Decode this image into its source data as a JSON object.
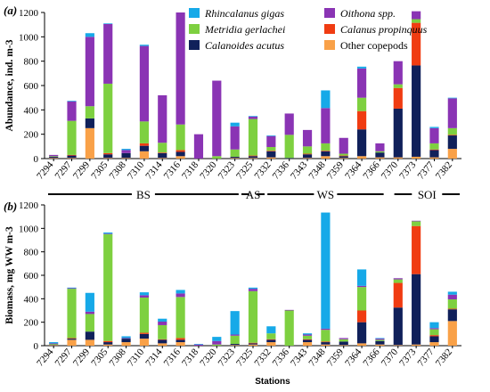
{
  "stations": [
    "7294",
    "7297",
    "7299",
    "7305",
    "7308",
    "7310",
    "7314",
    "7316",
    "7318",
    "7320",
    "7323",
    "7325",
    "7332",
    "7336",
    "7343",
    "7348",
    "7359",
    "7364",
    "7366",
    "7370",
    "7373",
    "7377",
    "7382"
  ],
  "x_title": "Stations",
  "regions": [
    {
      "label": "BS",
      "from": "7294",
      "to": "7323"
    },
    {
      "label": "AS",
      "from": "7325",
      "to": "7325"
    },
    {
      "label": "WS",
      "from": "7332",
      "to": "7366"
    },
    {
      "label": "SOI",
      "from": "7370",
      "to": "7382"
    }
  ],
  "colors": {
    "Rhincalanus gigas": "#16a9e8",
    "Metridia gerlachei": "#7ed040",
    "Calanoides acutus": "#10205a",
    "Oithona spp.": "#8a34b4",
    "Calanus propinquus": "#f03c12",
    "Other copepods": "#f9a148"
  },
  "chart_data": [
    {
      "type": "bar",
      "stacked": true,
      "panel": "(a)",
      "ylabel": "Abundance, ind. m-3",
      "ylim": [
        0,
        1200
      ],
      "yticks": [
        0,
        200,
        400,
        600,
        800,
        1000,
        1200
      ],
      "legend": [
        "Rhincalanus gigas",
        "Oithona spp.",
        "Metridia gerlachei",
        "Calanus propinquus",
        "Calanoides acutus",
        "Other copepods"
      ],
      "legend_position": "top-left",
      "categories": [
        "7294",
        "7297",
        "7299",
        "7305",
        "7308",
        "7310",
        "7314",
        "7316",
        "7318",
        "7320",
        "7323",
        "7325",
        "7332",
        "7336",
        "7343",
        "7348",
        "7359",
        "7364",
        "7366",
        "7370",
        "7373",
        "7377",
        "7382"
      ],
      "series": [
        {
          "name": "Other copepods",
          "values": [
            5,
            5,
            250,
            5,
            5,
            60,
            5,
            20,
            0,
            0,
            5,
            5,
            10,
            0,
            5,
            20,
            5,
            20,
            10,
            10,
            15,
            10,
            80
          ]
        },
        {
          "name": "Calanoides acutus",
          "values": [
            10,
            20,
            80,
            30,
            40,
            45,
            40,
            35,
            0,
            0,
            10,
            15,
            50,
            5,
            30,
            40,
            15,
            220,
            40,
            400,
            750,
            60,
            110
          ]
        },
        {
          "name": "Calanus propinquus",
          "values": [
            0,
            5,
            0,
            10,
            0,
            20,
            5,
            15,
            0,
            0,
            0,
            5,
            5,
            0,
            5,
            5,
            5,
            150,
            0,
            170,
            350,
            5,
            5
          ]
        },
        {
          "name": "Metridia gerlachei",
          "values": [
            5,
            280,
            100,
            570,
            0,
            180,
            80,
            210,
            0,
            20,
            60,
            300,
            30,
            190,
            60,
            60,
            15,
            110,
            10,
            30,
            30,
            50,
            55
          ]
        },
        {
          "name": "Oithona spp.",
          "values": [
            10,
            160,
            570,
            490,
            25,
            620,
            390,
            920,
            200,
            620,
            190,
            20,
            90,
            175,
            135,
            290,
            130,
            240,
            65,
            190,
            65,
            125,
            245
          ]
        },
        {
          "name": "Rhincalanus gigas",
          "values": [
            0,
            5,
            30,
            5,
            10,
            10,
            0,
            0,
            0,
            0,
            30,
            5,
            5,
            0,
            0,
            145,
            0,
            15,
            0,
            0,
            0,
            10,
            5
          ]
        }
      ]
    },
    {
      "type": "bar",
      "stacked": true,
      "panel": "(b)",
      "ylabel": "Biomass, mg WW m-3",
      "ylim": [
        0,
        1200
      ],
      "yticks": [
        0,
        200,
        400,
        600,
        800,
        1000,
        1200
      ],
      "categories": [
        "7294",
        "7297",
        "7299",
        "7305",
        "7308",
        "7310",
        "7314",
        "7316",
        "7318",
        "7320",
        "7323",
        "7325",
        "7332",
        "7336",
        "7343",
        "7348",
        "7359",
        "7364",
        "7366",
        "7370",
        "7373",
        "7377",
        "7382"
      ],
      "series": [
        {
          "name": "Other copepods",
          "values": [
            5,
            50,
            50,
            10,
            30,
            60,
            20,
            30,
            0,
            0,
            5,
            10,
            30,
            0,
            30,
            10,
            5,
            20,
            10,
            5,
            10,
            30,
            210
          ]
        },
        {
          "name": "Calanoides acutus",
          "values": [
            5,
            10,
            70,
            20,
            30,
            40,
            30,
            20,
            0,
            0,
            10,
            10,
            20,
            0,
            20,
            20,
            30,
            180,
            30,
            320,
            600,
            50,
            100
          ]
        },
        {
          "name": "Calanus propinquus",
          "values": [
            0,
            5,
            0,
            10,
            0,
            10,
            5,
            15,
            0,
            0,
            0,
            5,
            5,
            0,
            5,
            5,
            0,
            100,
            0,
            210,
            410,
            10,
            5
          ]
        },
        {
          "name": "Metridia gerlachei",
          "values": [
            5,
            420,
            150,
            910,
            0,
            300,
            120,
            350,
            0,
            10,
            70,
            440,
            50,
            300,
            30,
            100,
            20,
            200,
            10,
            30,
            40,
            50,
            80
          ]
        },
        {
          "name": "Oithona spp.",
          "values": [
            5,
            5,
            20,
            5,
            5,
            20,
            30,
            30,
            10,
            30,
            10,
            20,
            0,
            5,
            10,
            10,
            10,
            10,
            10,
            10,
            5,
            10,
            40
          ]
        },
        {
          "name": "Rhincalanus gigas",
          "values": [
            10,
            5,
            160,
            10,
            15,
            25,
            25,
            30,
            5,
            35,
            200,
            10,
            60,
            0,
            10,
            990,
            0,
            140,
            5,
            0,
            0,
            50,
            25
          ]
        }
      ]
    }
  ]
}
